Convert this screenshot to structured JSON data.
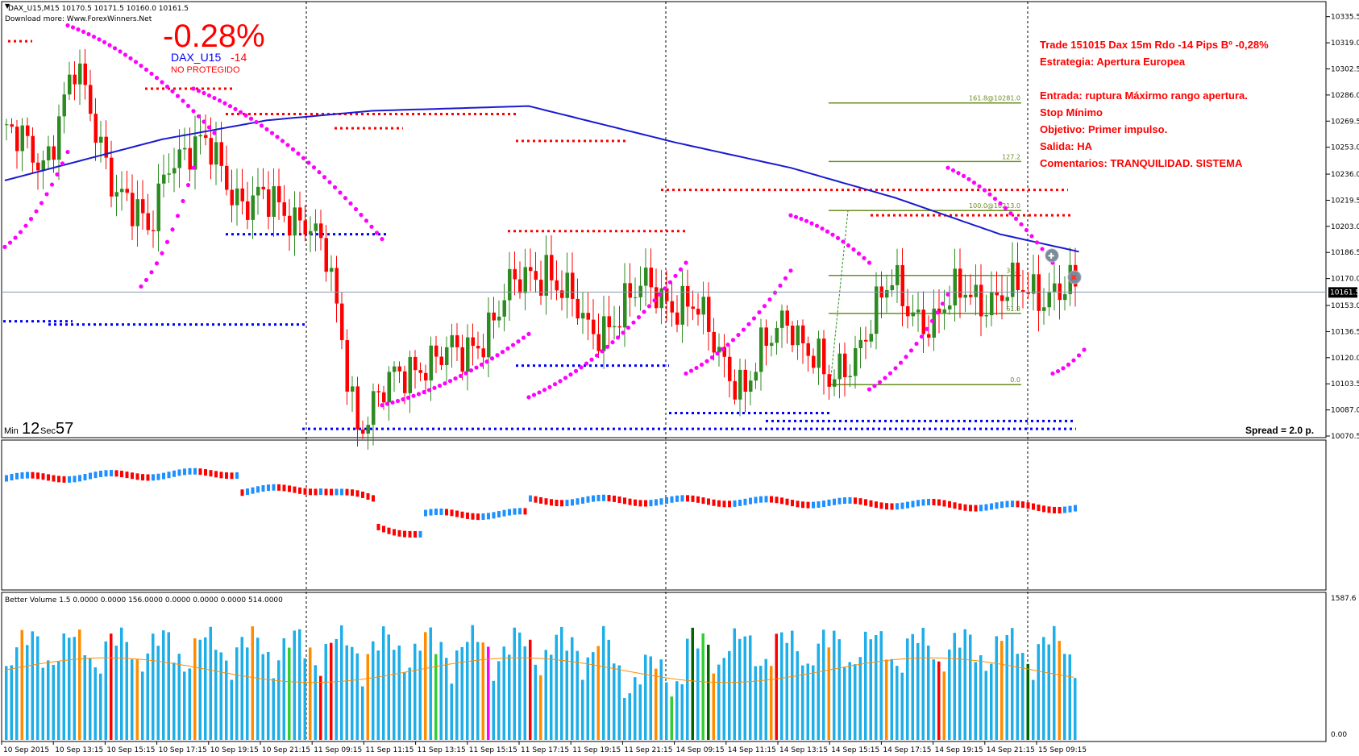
{
  "header": {
    "symbol_line": "DAX_U15,M15  10170.5 10171.5 10160.0 10161.5",
    "download_line": "Download more: Www.ForexWinners.Net"
  },
  "pnl": {
    "percent": "-0.28%",
    "symbol": "DAX_U15",
    "pips": "-14",
    "status": "NO PROTEGIDO"
  },
  "trade_notes": [
    "Trade 151015 Dax 15m Rdo -14 Pips Bº -0,28%",
    "Estrategia: Apertura Europea",
    "",
    "Entrada: ruptura Máxirmo rango apertura.",
    "Stop Mínimo",
    "Objetivo: Primer impulso.",
    "Salida: HA",
    "Comentarios: TRANQUILIDAD. SISTEMA"
  ],
  "timer": {
    "min_label": "Min",
    "min_value": "12",
    "sec_label": "Sec",
    "sec_value": "57"
  },
  "spread": "Spread = 2.0 p.",
  "volume_header": "Better Volume 1.5 0.0000 0.0000 156.0000 0.0000 0.0000 0.0000 514.0000",
  "colors": {
    "bull": "#2e8b22",
    "bear": "#ff0000",
    "ma": "#1a1ad0",
    "sar": "#ff00ff",
    "fib": "#6b8e23",
    "level_red": "#ff0000",
    "level_blue": "#0000ff",
    "ha_up": "#1e90ff",
    "ha_down": "#ff0000",
    "vol_normal": "#1eaee8",
    "vol_low": "#ff8c00",
    "vol_climax": "#ff0000",
    "vol_churn": "#32cd32",
    "vol_strong": "#006400",
    "vol_magenta": "#ff00ff",
    "vol_avg": "#ff8c00"
  },
  "chart_data": [
    {
      "type": "candlestick",
      "name_shown": "DAX_U15,M15",
      "ylim": [
        10070.5,
        10344
      ],
      "y_ticks": [
        "10335.5",
        "10319.0",
        "10302.5",
        "10286.0",
        "10269.5",
        "10253.0",
        "10236.0",
        "10219.5",
        "10203.0",
        "10186.5",
        "10170.0",
        "10153.0",
        "10136.5",
        "10120.0",
        "10103.5",
        "10087.0",
        "10070.5"
      ],
      "current_price": "10161.5",
      "current_price_value": 10161.5,
      "fib_levels": [
        {
          "label": "161.8@10281.0",
          "value": 10281.0
        },
        {
          "label": "127.2",
          "value": 10244.0
        },
        {
          "label": "100.0@10213.0",
          "value": 10213.0
        },
        {
          "label": "38.2",
          "value": 10172.0
        },
        {
          "label": "61.8",
          "value": 10148.0
        },
        {
          "label": "0.0",
          "value": 10103.0
        }
      ]
    },
    {
      "type": "heiken-ashi-line",
      "description_shown": ""
    },
    {
      "type": "bar",
      "ylim": [
        0,
        1650
      ],
      "y_ticks": [
        "1587.6",
        "0.00"
      ]
    }
  ],
  "x_ticks": [
    "10 Sep 2015",
    "10 Sep 13:15",
    "10 Sep 15:15",
    "10 Sep 17:15",
    "10 Sep 19:15",
    "10 Sep 21:15",
    "11 Sep 09:15",
    "11 Sep 11:15",
    "11 Sep 13:15",
    "11 Sep 15:15",
    "11 Sep 17:15",
    "11 Sep 19:15",
    "11 Sep 21:15",
    "14 Sep 09:15",
    "14 Sep 11:15",
    "14 Sep 13:15",
    "14 Sep 15:15",
    "14 Sep 17:15",
    "14 Sep 19:15",
    "14 Sep 21:15",
    "15 Sep 09:15"
  ]
}
